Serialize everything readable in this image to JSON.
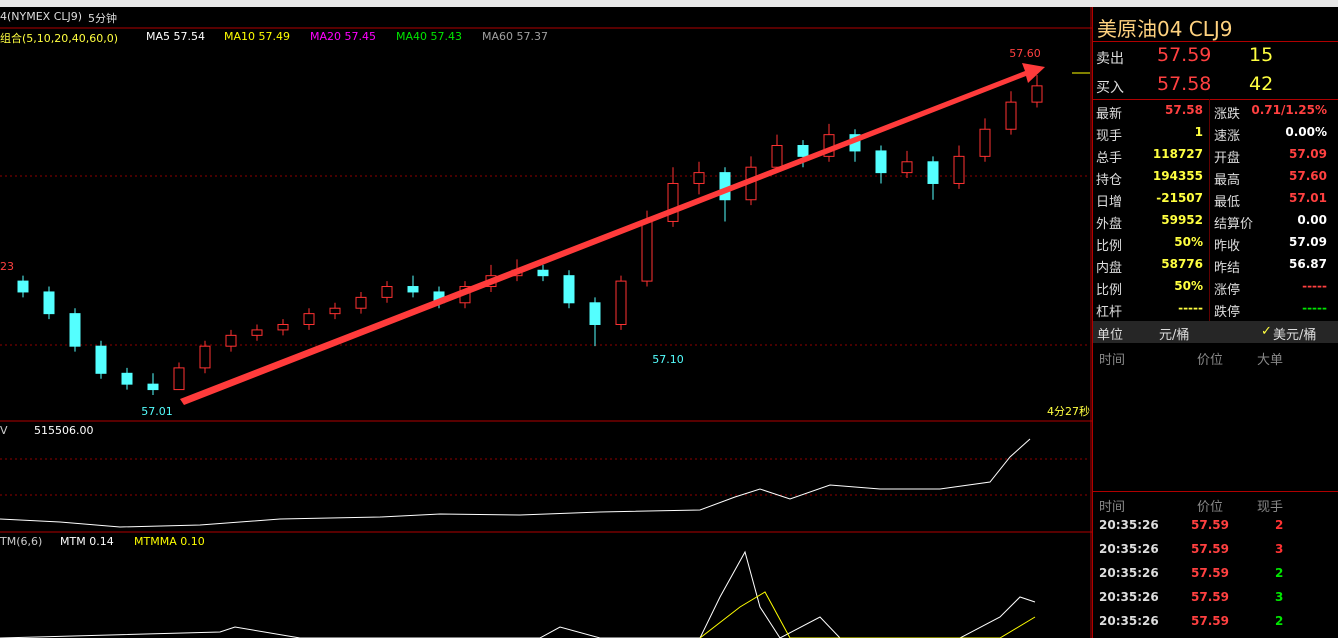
{
  "header": {
    "symbol": "4(NYMEX CLJ9)",
    "period": "5分钟"
  },
  "indicators": {
    "group": "组合(5,10,20,40,60,0)",
    "items": [
      {
        "text": "MA5 57.54",
        "color": "#ffffff"
      },
      {
        "text": "MA10 57.49",
        "color": "#ffff00"
      },
      {
        "text": "MA20 57.45",
        "color": "#ff00ff"
      },
      {
        "text": "MA40 57.43",
        "color": "#00e600"
      },
      {
        "text": "MA60 57.37",
        "color": "#a0a0a0"
      }
    ]
  },
  "chart": {
    "up_color": "#ff3232",
    "down_color": "#54ffff",
    "candles": [
      [
        57.22,
        57.23,
        57.19,
        57.2
      ],
      [
        57.2,
        57.21,
        57.15,
        57.16
      ],
      [
        57.16,
        57.17,
        57.09,
        57.1
      ],
      [
        57.1,
        57.11,
        57.04,
        57.05
      ],
      [
        57.05,
        57.06,
        57.02,
        57.03
      ],
      [
        57.03,
        57.05,
        57.01,
        57.02
      ],
      [
        57.02,
        57.07,
        57.02,
        57.06
      ],
      [
        57.06,
        57.11,
        57.05,
        57.1
      ],
      [
        57.1,
        57.13,
        57.09,
        57.12
      ],
      [
        57.12,
        57.14,
        57.11,
        57.13
      ],
      [
        57.13,
        57.15,
        57.12,
        57.14
      ],
      [
        57.14,
        57.17,
        57.13,
        57.16
      ],
      [
        57.16,
        57.18,
        57.15,
        57.17
      ],
      [
        57.17,
        57.2,
        57.16,
        57.19
      ],
      [
        57.19,
        57.22,
        57.18,
        57.21
      ],
      [
        57.21,
        57.23,
        57.19,
        57.2
      ],
      [
        57.2,
        57.21,
        57.17,
        57.18
      ],
      [
        57.18,
        57.22,
        57.17,
        57.21
      ],
      [
        57.21,
        57.25,
        57.2,
        57.23
      ],
      [
        57.23,
        57.26,
        57.22,
        57.24
      ],
      [
        57.24,
        57.25,
        57.22,
        57.23
      ],
      [
        57.23,
        57.24,
        57.17,
        57.18
      ],
      [
        57.18,
        57.19,
        57.1,
        57.14
      ],
      [
        57.14,
        57.23,
        57.13,
        57.22
      ],
      [
        57.22,
        57.35,
        57.21,
        57.33
      ],
      [
        57.33,
        57.43,
        57.32,
        57.4
      ],
      [
        57.4,
        57.44,
        57.38,
        57.42
      ],
      [
        57.42,
        57.43,
        57.33,
        57.37
      ],
      [
        57.37,
        57.45,
        57.36,
        57.43
      ],
      [
        57.43,
        57.49,
        57.42,
        57.47
      ],
      [
        57.47,
        57.48,
        57.43,
        57.45
      ],
      [
        57.45,
        57.51,
        57.44,
        57.49
      ],
      [
        57.49,
        57.5,
        57.44,
        57.46
      ],
      [
        57.46,
        57.47,
        57.4,
        57.42
      ],
      [
        57.42,
        57.46,
        57.41,
        57.44
      ],
      [
        57.44,
        57.45,
        57.37,
        57.4
      ],
      [
        57.4,
        57.47,
        57.39,
        57.45
      ],
      [
        57.45,
        57.52,
        57.44,
        57.5
      ],
      [
        57.5,
        57.57,
        57.49,
        57.55
      ],
      [
        57.55,
        57.6,
        57.54,
        57.58
      ]
    ],
    "high_label": "57.60",
    "low_label": "57.01",
    "mid_low_label": "57.10",
    "left_label": "23",
    "countdown": "4分27秒"
  },
  "obv": {
    "name": "V",
    "value": "515506.00"
  },
  "mtm": {
    "name": "TM(6,6)",
    "mtm": "MTM 0.14",
    "mtmma": "MTMMA 0.10"
  },
  "quote": {
    "title": "美原油04  CLJ9",
    "sell": {
      "label": "卖出",
      "price": "57.59",
      "qty": "15"
    },
    "buy": {
      "label": "买入",
      "price": "57.58",
      "qty": "42"
    },
    "rows": [
      [
        "最新",
        "57.58",
        "涨跌",
        "0.71/1.25%"
      ],
      [
        "现手",
        "1",
        "速涨",
        "0.00%"
      ],
      [
        "总手",
        "118727",
        "开盘",
        "57.09"
      ],
      [
        "持仓",
        "194355",
        "最高",
        "57.60"
      ],
      [
        "日增",
        "-21507",
        "最低",
        "57.01"
      ],
      [
        "外盘",
        "59952",
        "结算价",
        "0.00"
      ],
      [
        "比例",
        "50%",
        "昨收",
        "57.09"
      ],
      [
        "内盘",
        "58776",
        "昨结",
        "56.87"
      ],
      [
        "比例",
        "50%",
        "涨停",
        "-----"
      ],
      [
        "杠杆",
        "-----",
        "跌停",
        "-----"
      ]
    ],
    "row_colors": [
      [
        "#ff4040",
        "#ff4040"
      ],
      [
        "#ffff40",
        "#ffffff"
      ],
      [
        "#ffff40",
        "#ff4040"
      ],
      [
        "#ffff40",
        "#ff4040"
      ],
      [
        "#ffff40",
        "#ff4040"
      ],
      [
        "#ffff40",
        "#ffffff"
      ],
      [
        "#ffff40",
        "#ffffff"
      ],
      [
        "#ffff40",
        "#ffffff"
      ],
      [
        "#ffff40",
        "#ff4040"
      ],
      [
        "#ffff40",
        "#00e600"
      ]
    ],
    "unit": {
      "label": "单位",
      "left": "元/桶",
      "right": "美元/桶"
    },
    "big_header": [
      "时间",
      "价位",
      "大单"
    ],
    "ticks_header": [
      "时间",
      "价位",
      "现手"
    ],
    "ticks": [
      [
        "20:35:26",
        "57.59",
        "2",
        "#ff3232"
      ],
      [
        "20:35:26",
        "57.59",
        "3",
        "#ff3232"
      ],
      [
        "20:35:26",
        "57.59",
        "2",
        "#00e600"
      ],
      [
        "20:35:26",
        "57.59",
        "3",
        "#00e600"
      ],
      [
        "20:35:26",
        "57.59",
        "2",
        "#00e600"
      ]
    ]
  }
}
